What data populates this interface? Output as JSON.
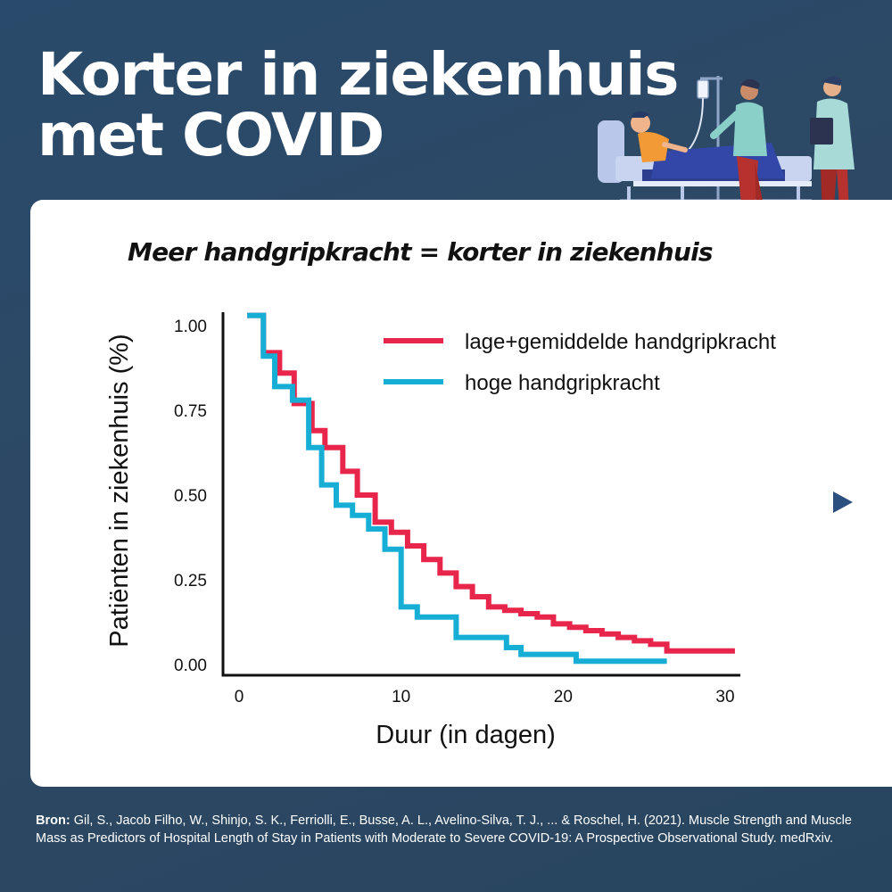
{
  "header": {
    "title_line1": "Korter in ziekenhuis",
    "title_line2": "met COVID"
  },
  "chart_data": {
    "type": "line",
    "step": true,
    "title": "Meer handgripkracht = korter in ziekenhuis",
    "xlabel": "Duur (in dagen)",
    "ylabel": "Patiënten in ziekenhuis (%)",
    "xlim": [
      0,
      31
    ],
    "ylim": [
      0,
      1.05
    ],
    "x_ticks": [
      0,
      10,
      20,
      30
    ],
    "y_ticks": [
      0.0,
      0.25,
      0.5,
      0.75,
      1.0
    ],
    "y_tick_labels": [
      "0.00",
      "0.25",
      "0.50",
      "0.75",
      "1.00"
    ],
    "grid": false,
    "legend": "top-right",
    "series": [
      {
        "name": "lage+gemiddelde handgripkracht",
        "color": "#e8254a",
        "x": [
          0.5,
          1.5,
          2.5,
          3.4,
          4.5,
          5.3,
          6.4,
          7.3,
          8.4,
          9.4,
          10.4,
          11.4,
          12.4,
          13.4,
          14.4,
          15.4,
          16.4,
          17.4,
          18.4,
          19.4,
          20.4,
          21.4,
          22.4,
          23.4,
          24.4,
          25.4,
          26.4,
          27.4,
          28.4,
          30.6
        ],
        "y": [
          1.03,
          0.92,
          0.86,
          0.77,
          0.69,
          0.64,
          0.57,
          0.5,
          0.42,
          0.39,
          0.35,
          0.31,
          0.27,
          0.23,
          0.2,
          0.17,
          0.16,
          0.15,
          0.14,
          0.12,
          0.11,
          0.1,
          0.09,
          0.08,
          0.07,
          0.06,
          0.04,
          0.04,
          0.04,
          0.04
        ]
      },
      {
        "name": "hoge handgripkracht",
        "color": "#17aed6",
        "x": [
          0.5,
          1.5,
          2.2,
          3.3,
          4.3,
          5.1,
          6.0,
          7.0,
          8.0,
          9.0,
          10.0,
          11.0,
          12.4,
          13.4,
          15.3,
          16.5,
          17.4,
          19.0,
          20.8,
          21.8,
          26.4
        ],
        "y": [
          1.03,
          0.91,
          0.82,
          0.78,
          0.64,
          0.53,
          0.47,
          0.44,
          0.4,
          0.34,
          0.17,
          0.14,
          0.14,
          0.08,
          0.08,
          0.05,
          0.03,
          0.03,
          0.01,
          0.01,
          0.01
        ]
      }
    ]
  },
  "source": {
    "label": "Bron:",
    "text": " Gil, S., Jacob Filho, W., Shinjo, S. K., Ferriolli, E., Busse, A. L., Avelino-Silva, T. J., ... & Roschel, H. (2021). Muscle Strength and Muscle Mass as Predictors of Hospital Length of Stay in Patients with Moderate to Severe COVID-19: A Prospective Observational Study. medRxiv."
  },
  "colors": {
    "background": "#2a4a6b",
    "card": "#ffffff",
    "accent_red": "#e8254a",
    "accent_blue": "#17aed6",
    "arrow": "#2b4f7e"
  },
  "icons": {
    "illustration": "hospital-bed-patient-with-nurse-and-doctor-illustration",
    "next": "play-arrow-icon"
  }
}
